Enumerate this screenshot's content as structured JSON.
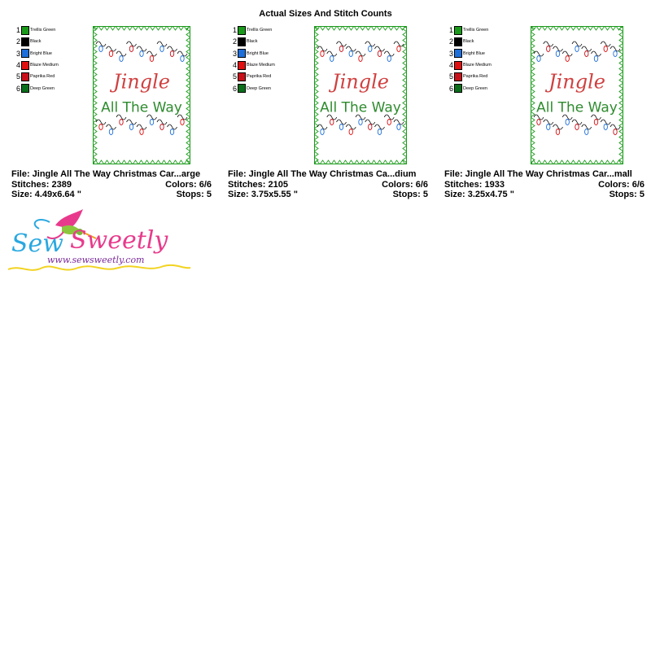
{
  "page": {
    "title": "Actual Sizes And Stitch Counts"
  },
  "colors": [
    {
      "num": "1",
      "name": "Trellis Green",
      "hex": "#1a9a1a"
    },
    {
      "num": "2",
      "name": "Black",
      "hex": "#000000"
    },
    {
      "num": "3",
      "name": "Bright Blue",
      "hex": "#1e6fd9"
    },
    {
      "num": "4",
      "name": "Blaze Medium",
      "hex": "#e01010"
    },
    {
      "num": "5",
      "name": "Paprika Red",
      "hex": "#c8101a"
    },
    {
      "num": "6",
      "name": "Deep Green",
      "hex": "#0a6e1a"
    }
  ],
  "designs": [
    {
      "file_label": "File: Jingle All The Way Christmas Car...arge",
      "stitches_label": "Stitches: 2389",
      "colors_label": "Colors: 6/6",
      "size_label": "Size: 4.49x6.64 \"",
      "stops_label": "Stops: 5",
      "line1": "Jingle",
      "line2": "All The Way"
    },
    {
      "file_label": "File: Jingle All The Way Christmas Ca...dium",
      "stitches_label": "Stitches: 2105",
      "colors_label": "Colors: 6/6",
      "size_label": "Size: 3.75x5.55 \"",
      "stops_label": "Stops: 5",
      "line1": "Jingle",
      "line2": "All The Way"
    },
    {
      "file_label": "File: Jingle All The Way Christmas Car...mall",
      "stitches_label": "Stitches: 1933",
      "colors_label": "Colors: 6/6",
      "size_label": "Size: 3.25x4.75 \"",
      "stops_label": "Stops: 5",
      "line1": "Jingle",
      "line2": "All The Way"
    }
  ],
  "logo": {
    "brand": "Sew Sweetly",
    "url": "www.sewsweetly.com"
  }
}
